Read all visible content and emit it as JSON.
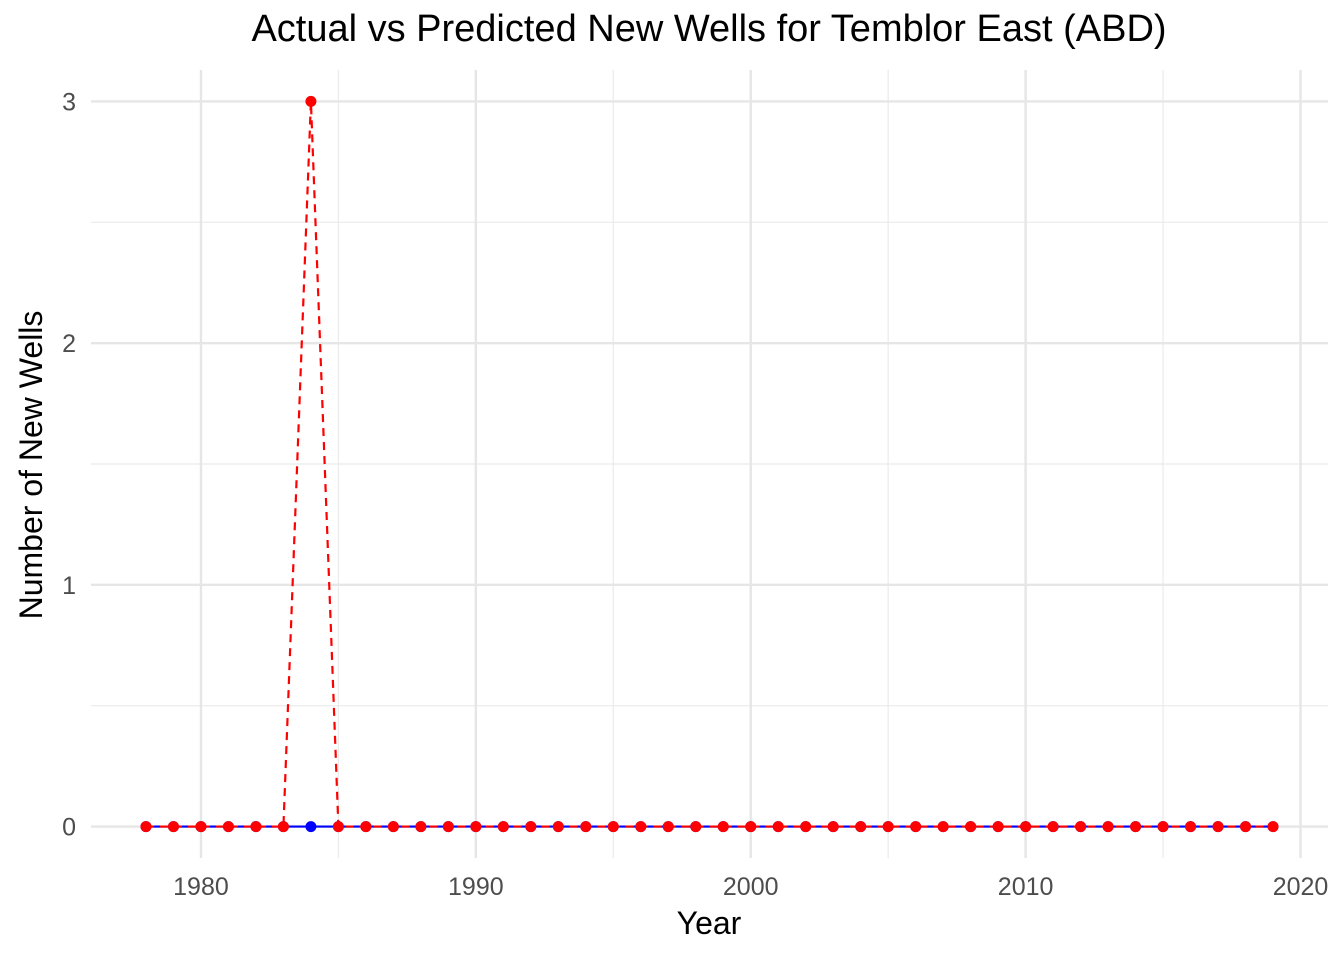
{
  "chart_data": {
    "type": "line",
    "title": "Actual vs Predicted New Wells for Temblor East (ABD)",
    "xlabel": "Year",
    "ylabel": "Number of New Wells",
    "xlim": [
      1976,
      2021
    ],
    "ylim": [
      -0.13,
      3.13
    ],
    "x_ticks": [
      1980,
      1990,
      2000,
      2010,
      2020
    ],
    "y_ticks": [
      0,
      1,
      2,
      3
    ],
    "grid": true,
    "legend": "none",
    "x": [
      1978,
      1979,
      1980,
      1981,
      1982,
      1983,
      1984,
      1985,
      1986,
      1987,
      1988,
      1989,
      1990,
      1991,
      1992,
      1993,
      1994,
      1995,
      1996,
      1997,
      1998,
      1999,
      2000,
      2001,
      2002,
      2003,
      2004,
      2005,
      2006,
      2007,
      2008,
      2009,
      2010,
      2011,
      2012,
      2013,
      2014,
      2015,
      2016,
      2017,
      2018,
      2019
    ],
    "series": [
      {
        "key": "actual",
        "color": "#0000ff",
        "line_style": "solid",
        "values": [
          0,
          0,
          0,
          0,
          0,
          0,
          0,
          0,
          0,
          0,
          0,
          0,
          0,
          0,
          0,
          0,
          0,
          0,
          0,
          0,
          0,
          0,
          0,
          0,
          0,
          0,
          0,
          0,
          0,
          0,
          0,
          0,
          0,
          0,
          0,
          0,
          0,
          0,
          0,
          0,
          0,
          0
        ]
      },
      {
        "key": "predicted",
        "color": "#ff0000",
        "line_style": "dashed",
        "values": [
          0,
          0,
          0,
          0,
          0,
          0,
          3,
          0,
          0,
          0,
          0,
          0,
          0,
          0,
          0,
          0,
          0,
          0,
          0,
          0,
          0,
          0,
          0,
          0,
          0,
          0,
          0,
          0,
          0,
          0,
          0,
          0,
          0,
          0,
          0,
          0,
          0,
          0,
          0,
          0,
          0,
          0
        ]
      }
    ]
  }
}
